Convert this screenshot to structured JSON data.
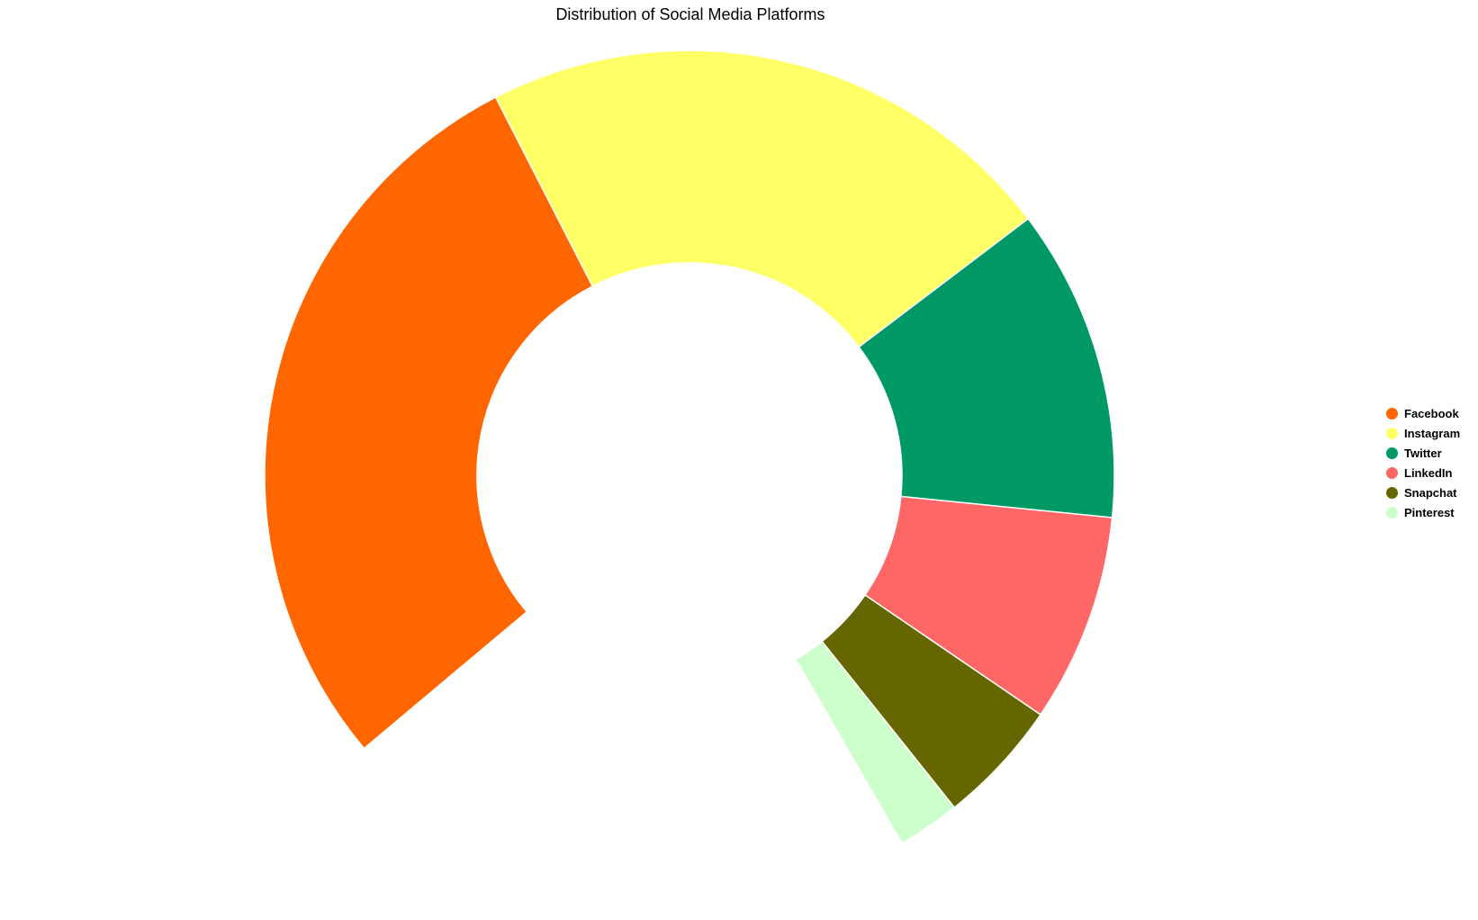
{
  "chart_data": {
    "type": "pie",
    "style": "semi-donut (partial ring, gap at bottom)",
    "title": "Distribution of Social Media Platforms",
    "unit": "percent",
    "slices": [
      {
        "label": "Facebook",
        "value": 36,
        "color": "#FF6600"
      },
      {
        "label": "Instagram",
        "value": 28,
        "color": "#FFFF66"
      },
      {
        "label": "Twitter",
        "value": 15,
        "color": "#009966"
      },
      {
        "label": "LinkedIn",
        "value": 10,
        "color": "#FF6666"
      },
      {
        "label": "Snapchat",
        "value": 6,
        "color": "#666600"
      },
      {
        "label": "Pinterest",
        "value": 3,
        "color": "#CCFFCC"
      }
    ],
    "legend": {
      "placement": "right"
    }
  }
}
